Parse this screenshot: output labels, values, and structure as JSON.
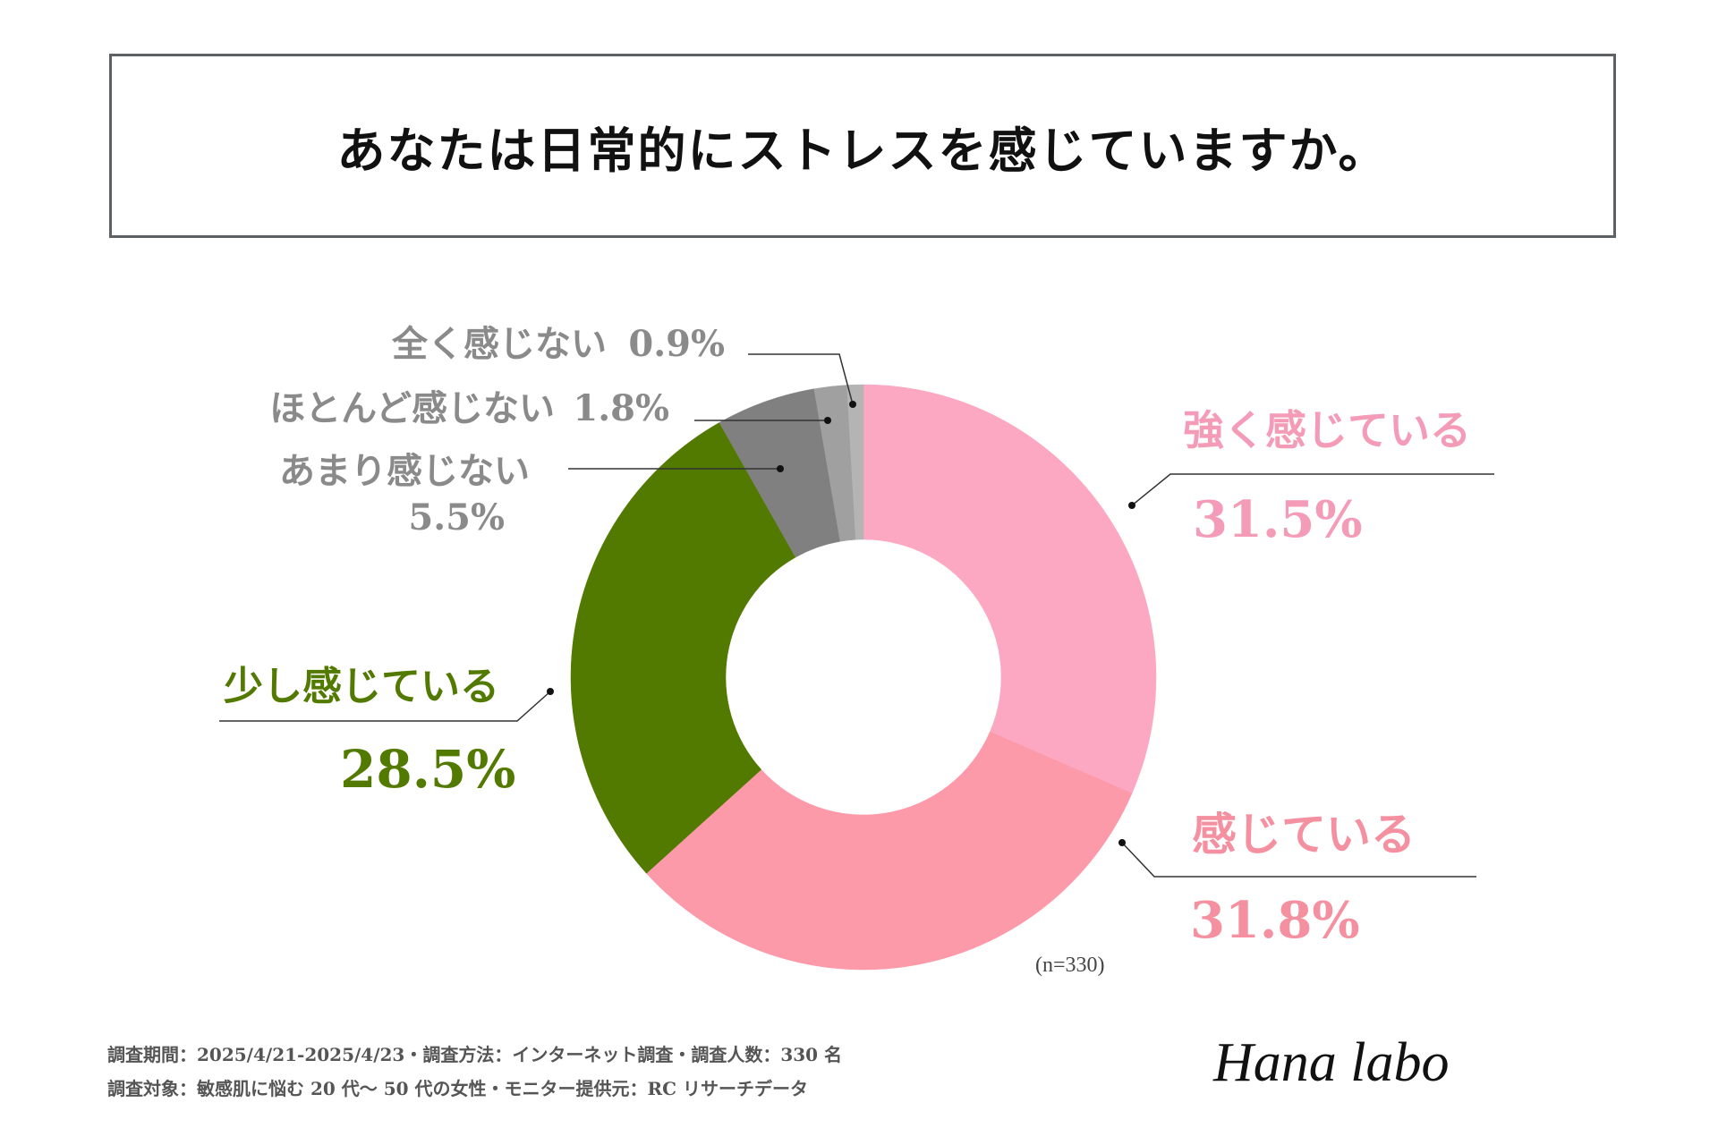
{
  "title": "あなたは日常的にストレスを感じていますか。",
  "chart_data": {
    "type": "pie",
    "variant": "donut",
    "title": "あなたは日常的にストレスを感じていますか。",
    "sample_note": "(n=330)",
    "categories": [
      "強く感じている",
      "感じている",
      "少し感じている",
      "あまり感じない",
      "ほとんど感じない",
      "全く感じない"
    ],
    "values": [
      31.5,
      31.8,
      28.5,
      5.5,
      1.8,
      0.9
    ],
    "value_labels": [
      "31.5%",
      "31.8%",
      "28.5%",
      "5.5%",
      "1.8%",
      "0.9%"
    ],
    "colors": [
      "#fda8c3",
      "#fd9aaa",
      "#537a00",
      "#808080",
      "#a0a0a0",
      "#b4b4b4"
    ],
    "label_colors": [
      "#f49bb8",
      "#f4909f",
      "#537a00",
      "#8a8a8a",
      "#8a8a8a",
      "#8a8a8a"
    ]
  },
  "footer": {
    "line1": "調査期間：2025/4/21-2025/4/23・調査方法：インターネット調査・調査人数：330 名",
    "line2": "調査対象：敏感肌に悩む 20 代〜 50 代の女性・モニター提供元：RC リサーチデータ"
  },
  "logo": {
    "text": "Hana labo"
  }
}
